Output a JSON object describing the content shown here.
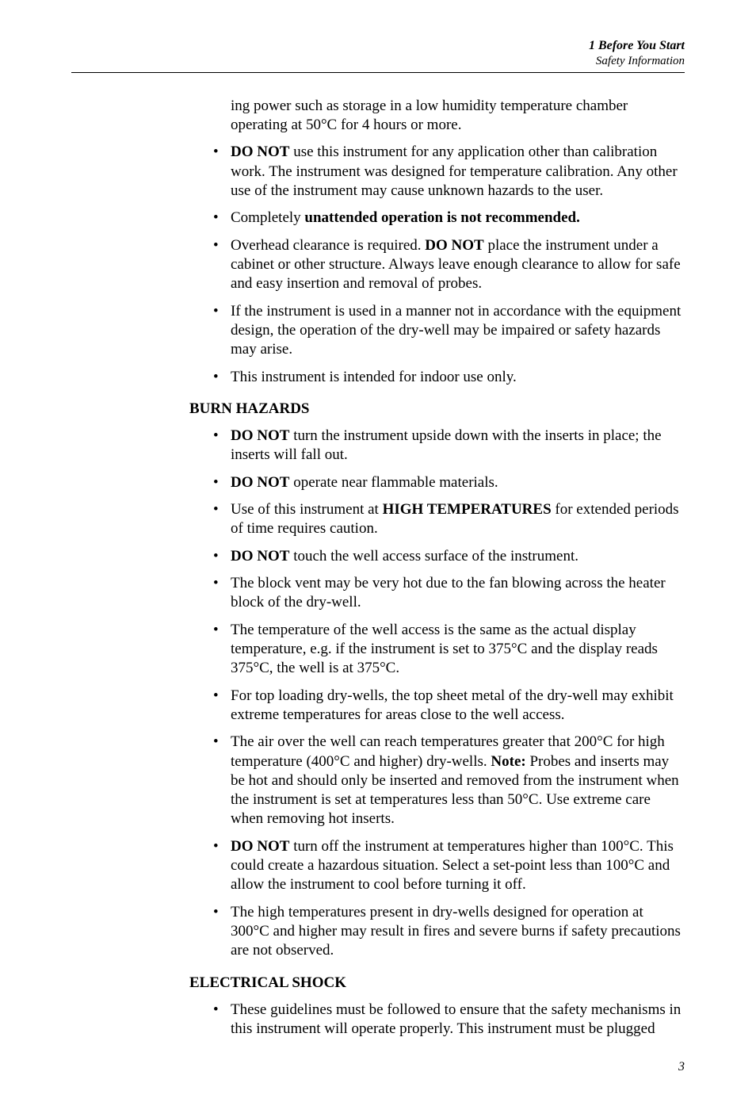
{
  "runningHead": {
    "chapter": "1  Before You Start",
    "section": "Safety Information"
  },
  "blocks": {
    "general": {
      "continuation": "ing power such as storage in a low humidity temperature chamber operating at 50°C for 4 hours or more.",
      "items": [
        "<b>DO NOT</b> use this instrument for any application other than calibration work. The instrument was designed for temperature calibration. Any other use of the instrument may cause unknown hazards to the user.",
        "Completely <b>unattended operation is not recommended.</b>",
        "Overhead clearance is required. <b>DO NOT</b> place the instrument under a cabinet or other structure. Always leave enough clearance to allow for safe and easy insertion and removal of probes.",
        "If the instrument is used in a manner not in accordance with the equipment design, the operation of the dry-well may be impaired or safety hazards may arise.",
        "This instrument is intended for indoor use only."
      ]
    },
    "burn": {
      "heading": "BURN HAZARDS",
      "items": [
        "<b>DO NOT</b> turn the instrument upside down with the inserts in place; the inserts will fall out.",
        "<b>DO NOT</b> operate near flammable materials.",
        "Use of this instrument at <b>HIGH TEMPERATURES</b> for extended periods of time requires caution.",
        "<b>DO NOT</b> touch the well access surface of the instrument.",
        "The block vent may be very hot due to the fan blowing across the heater block of the dry-well.",
        "The temperature of the well access is the same as the actual display temperature, e.g. if the instrument is set to 375°C and the display reads 375°C, the well is at 375°C.",
        "For top loading dry-wells, the top sheet metal of the dry-well may exhibit extreme temperatures for areas close to the well access.",
        "The air over the well can reach temperatures greater that 200°C for high temperature (400°C and higher) dry-wells. <b>Note:</b> Probes and inserts may be hot and should only be inserted and removed from the instrument when the instrument is set at temperatures less than 50°C. Use extreme care when removing hot inserts.",
        "<b>DO NOT</b> turn off the instrument at temperatures higher than 100°C. This could create a hazardous situation. Select a set-point less than 100°C and allow the instrument to cool before turning it off.",
        "The high temperatures present in dry-wells designed for operation at 300°C and higher may result in fires and severe burns if safety precautions are not observed."
      ]
    },
    "electrical": {
      "heading": "ELECTRICAL SHOCK",
      "items": [
        "These guidelines must be followed to ensure that the safety mechanisms in this instrument will operate properly. This instrument must be plugged"
      ]
    }
  },
  "pageNumber": "3"
}
